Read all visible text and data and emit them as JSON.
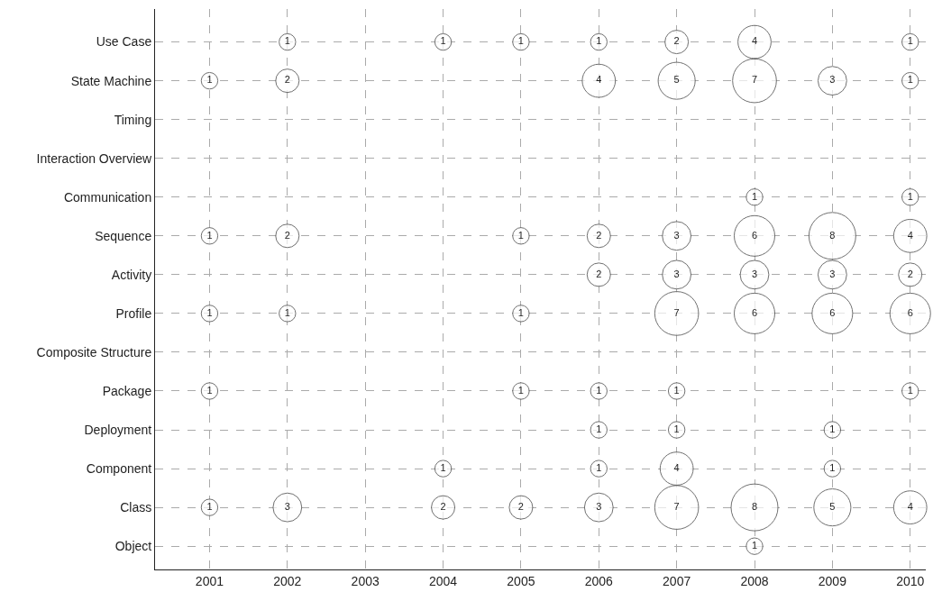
{
  "chart_data": {
    "type": "bubble",
    "orientation": "horizontal",
    "categories": [
      "Use Case",
      "State Machine",
      "Timing",
      "Interaction Overview",
      "Communication",
      "Sequence",
      "Activity",
      "Profile",
      "Composite Structure",
      "Package",
      "Deployment",
      "Component",
      "Class",
      "Object"
    ],
    "xlim": [
      2000.3,
      2010.2
    ],
    "xticks": [
      2001,
      2002,
      2003,
      2004,
      2005,
      2006,
      2007,
      2008,
      2009,
      2010
    ],
    "series": [
      {
        "color": "#333333",
        "values": [
          null,
          2001,
          null,
          null,
          null,
          2001,
          null,
          2001,
          null,
          2001,
          null,
          null,
          2001,
          null
        ],
        "sizes": [
          null,
          1,
          null,
          null,
          null,
          1,
          null,
          1,
          null,
          1,
          null,
          null,
          1,
          null
        ],
        "value_labels": [
          null,
          "1",
          null,
          null,
          null,
          "1",
          null,
          "1",
          null,
          "1",
          null,
          null,
          "1",
          null
        ]
      },
      {
        "color": "#333333",
        "values": [
          2002,
          2002,
          null,
          null,
          null,
          2002,
          null,
          2002,
          null,
          null,
          null,
          null,
          2002,
          null
        ],
        "sizes": [
          1,
          2,
          null,
          null,
          null,
          2,
          null,
          1,
          null,
          null,
          null,
          null,
          3,
          null
        ],
        "value_labels": [
          "1",
          "2",
          null,
          null,
          null,
          "2",
          null,
          "1",
          null,
          null,
          null,
          null,
          "3",
          null
        ]
      },
      {
        "color": "#333333",
        "values": [
          2004,
          null,
          null,
          null,
          null,
          null,
          null,
          null,
          null,
          null,
          null,
          2004,
          2004,
          null
        ],
        "sizes": [
          1,
          null,
          null,
          null,
          null,
          null,
          null,
          null,
          null,
          null,
          null,
          1,
          2,
          null
        ],
        "value_labels": [
          "1",
          null,
          null,
          null,
          null,
          null,
          null,
          null,
          null,
          null,
          null,
          "1",
          "2",
          null
        ]
      },
      {
        "color": "#333333",
        "values": [
          2005,
          null,
          null,
          null,
          null,
          2005,
          null,
          2005,
          null,
          2005,
          null,
          null,
          2005,
          null
        ],
        "sizes": [
          1,
          null,
          null,
          null,
          null,
          1,
          null,
          1,
          null,
          1,
          null,
          null,
          2,
          null
        ],
        "value_labels": [
          "1",
          null,
          null,
          null,
          null,
          "1",
          null,
          "1",
          null,
          "1",
          null,
          null,
          "2",
          null
        ]
      },
      {
        "color": "#333333",
        "values": [
          2006,
          2006,
          null,
          null,
          null,
          2006,
          2006,
          null,
          null,
          2006,
          2006,
          2006,
          2006,
          null
        ],
        "sizes": [
          1,
          4,
          null,
          null,
          null,
          2,
          2,
          null,
          null,
          1,
          1,
          1,
          3,
          null
        ],
        "value_labels": [
          "1",
          "4",
          null,
          null,
          null,
          "2",
          "2",
          null,
          null,
          "1",
          "1",
          "1",
          "3",
          null
        ]
      },
      {
        "color": "#333333",
        "values": [
          2007,
          2007,
          null,
          null,
          null,
          2007,
          2007,
          2007,
          null,
          2007,
          2007,
          2007,
          2007,
          null
        ],
        "sizes": [
          2,
          5,
          null,
          null,
          null,
          3,
          3,
          7,
          null,
          1,
          1,
          4,
          7,
          null
        ],
        "value_labels": [
          "2",
          "5",
          null,
          null,
          null,
          "3",
          "3",
          "7",
          null,
          "1",
          "1",
          "4",
          "7",
          null
        ]
      },
      {
        "color": "#333333",
        "values": [
          2008,
          2008,
          null,
          null,
          2008,
          2008,
          2008,
          2008,
          null,
          null,
          null,
          null,
          2008,
          2008
        ],
        "sizes": [
          4,
          7,
          null,
          null,
          1,
          6,
          3,
          6,
          null,
          null,
          null,
          null,
          8,
          1
        ],
        "value_labels": [
          "4",
          "7",
          null,
          null,
          "1",
          "6",
          "3",
          "6",
          null,
          null,
          null,
          null,
          "8",
          "1"
        ]
      },
      {
        "color": "#333333",
        "values": [
          null,
          2009,
          null,
          null,
          null,
          2009,
          2009,
          2009,
          null,
          null,
          2009,
          2009,
          2009,
          null
        ],
        "sizes": [
          null,
          3,
          null,
          null,
          null,
          8,
          3,
          6,
          null,
          null,
          1,
          1,
          5,
          null
        ],
        "value_labels": [
          null,
          "3",
          null,
          null,
          null,
          "8",
          "3",
          "6",
          null,
          null,
          "1",
          "1",
          "5",
          null
        ]
      },
      {
        "color": "#333333",
        "values": [
          2010,
          2010,
          null,
          null,
          2010,
          2010,
          2010,
          2010,
          null,
          2010,
          null,
          null,
          2010,
          null
        ],
        "sizes": [
          1,
          1,
          null,
          null,
          1,
          4,
          2,
          6,
          null,
          1,
          null,
          null,
          4,
          null
        ],
        "value_labels": [
          "1",
          "1",
          null,
          null,
          "1",
          "4",
          "2",
          "6",
          null,
          "1",
          null,
          null,
          "4",
          null
        ]
      }
    ],
    "grid": true
  }
}
